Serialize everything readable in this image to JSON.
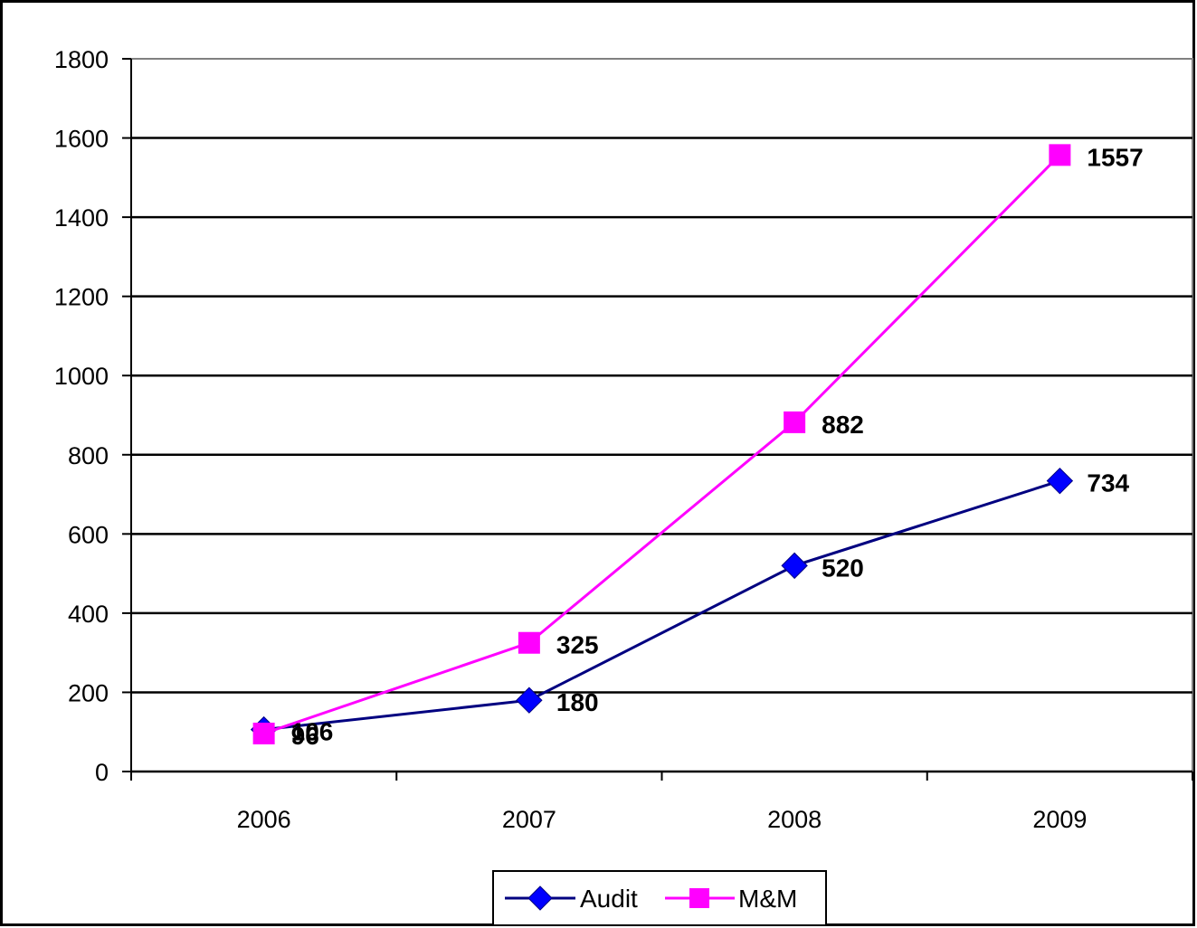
{
  "chart_data": {
    "type": "line",
    "title": "",
    "xlabel": "",
    "ylabel": "",
    "categories": [
      "2006",
      "2007",
      "2008",
      "2009"
    ],
    "ylim": [
      0,
      1800
    ],
    "yticks": [
      0,
      200,
      400,
      600,
      800,
      1000,
      1200,
      1400,
      1600,
      1800
    ],
    "grid": true,
    "legend_position": "bottom",
    "series": [
      {
        "name": "Audit",
        "marker": "diamond",
        "color": "#0000FF",
        "line_color": "#000080",
        "values": [
          106,
          180,
          520,
          734
        ]
      },
      {
        "name": "M&M",
        "marker": "square",
        "color": "#FF00FF",
        "line_color": "#FF00FF",
        "values": [
          96,
          325,
          882,
          1557
        ]
      }
    ]
  }
}
